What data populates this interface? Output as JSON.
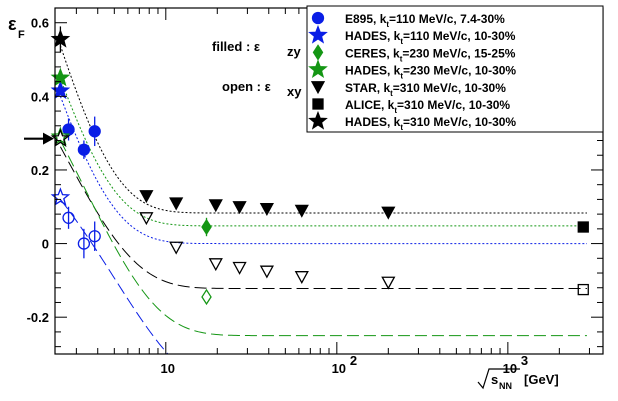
{
  "chart_data": {
    "type": "scatter",
    "x_axis": {
      "scale": "log",
      "range": [
        2.25,
        3600
      ],
      "ticks": [
        10,
        100,
        1000
      ],
      "tick_labels": [
        "10",
        "10",
        "10"
      ],
      "tick_exponents": [
        "",
        "2",
        "3"
      ],
      "label_sqrt": "s",
      "label_subscript": "NN",
      "label_units": "[GeV]"
    },
    "y_axis": {
      "range": [
        -0.3,
        0.64
      ],
      "ticks": [
        -0.2,
        0,
        0.2,
        0.4,
        0.6
      ],
      "tick_labels": [
        "-0.2",
        "0",
        "0.2",
        "0.4",
        "0.6"
      ],
      "label_main": "ε",
      "label_subscript": "F"
    },
    "grid": false,
    "legend_position": "top-right",
    "annotations": {
      "filled": {
        "text": "filled : ε",
        "subscript": "zy"
      },
      "open": {
        "text": "open : ε",
        "subscript": "xy"
      },
      "arrow_y": 0.285
    },
    "legend": [
      {
        "marker": "circle",
        "color": "#0a1ee6",
        "text": "E895,       k",
        "sub": "t",
        "rest": "=110 MeV/c, 7.4-30%"
      },
      {
        "marker": "star",
        "color": "#0a1ee6",
        "text": "HADES, k",
        "sub": "t",
        "rest": "=110 MeV/c, 10-30%"
      },
      {
        "marker": "diamond",
        "color": "#149614",
        "text": "CERES, k",
        "sub": "t",
        "rest": "=230 MeV/c, 15-25%"
      },
      {
        "marker": "star",
        "color": "#149614",
        "text": "HADES, k",
        "sub": "t",
        "rest": "=230 MeV/c, 10-30%"
      },
      {
        "marker": "triangle-down",
        "color": "#000000",
        "text": "STAR,     k",
        "sub": "t",
        "rest": "=310 MeV/c, 10-30%"
      },
      {
        "marker": "square",
        "color": "#000000",
        "text": "ALICE,    k",
        "sub": "t",
        "rest": "=310 MeV/c, 10-30%"
      },
      {
        "marker": "star",
        "color": "#000000",
        "text": "HADES, k",
        "sub": "t",
        "rest": "=310 MeV/c, 10-30%"
      }
    ],
    "series": [
      {
        "name": "E895, kt=110 MeV/c, 7.4-30%",
        "variant": "filled",
        "marker": "circle",
        "color": "#0a1ee6",
        "x": [
          2.7,
          3.32,
          3.84
        ],
        "y": [
          0.31,
          0.255,
          0.305
        ],
        "err": [
          0.03,
          0.025,
          0.04
        ]
      },
      {
        "name": "E895, kt=110 MeV/c, 7.4-30%",
        "variant": "open",
        "marker": "circle",
        "color": "#0a1ee6",
        "x": [
          2.7,
          3.32,
          3.84
        ],
        "y": [
          0.07,
          0.0,
          0.02
        ],
        "err": [
          0.03,
          0.04,
          0.04
        ]
      },
      {
        "name": "HADES, kt=110 MeV/c, 10-30%",
        "variant": "filled",
        "marker": "star",
        "color": "#0a1ee6",
        "x": [
          2.42
        ],
        "y": [
          0.415
        ],
        "err": [
          0
        ]
      },
      {
        "name": "HADES, kt=110 MeV/c, 10-30%",
        "variant": "open",
        "marker": "star",
        "color": "#0a1ee6",
        "x": [
          2.42
        ],
        "y": [
          0.125
        ],
        "err": [
          0
        ]
      },
      {
        "name": "CERES, kt=230 MeV/c, 15-25%",
        "variant": "filled",
        "marker": "diamond",
        "color": "#149614",
        "x": [
          17.3
        ],
        "y": [
          0.045
        ],
        "err": [
          0.025
        ]
      },
      {
        "name": "CERES, kt=230 MeV/c, 15-25%",
        "variant": "open",
        "marker": "diamond",
        "color": "#149614",
        "x": [
          17.3
        ],
        "y": [
          -0.145
        ],
        "err": [
          0
        ]
      },
      {
        "name": "HADES, kt=230 MeV/c, 10-30%",
        "variant": "filled",
        "marker": "star",
        "color": "#149614",
        "x": [
          2.42
        ],
        "y": [
          0.45
        ],
        "err": [
          0
        ]
      },
      {
        "name": "HADES, kt=230 MeV/c, 10-30%",
        "variant": "open",
        "marker": "star",
        "color": "#149614",
        "x": [
          2.42
        ],
        "y": [
          0.29
        ],
        "err": [
          0
        ]
      },
      {
        "name": "STAR, kt=310 MeV/c, 10-30%",
        "variant": "filled",
        "marker": "triangle-down",
        "color": "#000000",
        "x": [
          7.7,
          11.5,
          19.6,
          27,
          39,
          62.4,
          200
        ],
        "y": [
          0.13,
          0.11,
          0.105,
          0.1,
          0.095,
          0.09,
          0.085
        ],
        "err": [
          0,
          0,
          0,
          0,
          0,
          0,
          0
        ]
      },
      {
        "name": "STAR, kt=310 MeV/c, 10-30%",
        "variant": "open",
        "marker": "triangle-down",
        "color": "#000000",
        "x": [
          7.7,
          11.5,
          19.6,
          27,
          39,
          62.4,
          200
        ],
        "y": [
          0.07,
          -0.01,
          -0.055,
          -0.065,
          -0.075,
          -0.09,
          -0.105
        ],
        "err": [
          0,
          0,
          0,
          0,
          0,
          0,
          0
        ]
      },
      {
        "name": "ALICE, kt=310 MeV/c, 10-30%",
        "variant": "filled",
        "marker": "square",
        "color": "#000000",
        "x": [
          2760
        ],
        "y": [
          0.045
        ],
        "err": [
          0
        ]
      },
      {
        "name": "ALICE, kt=310 MeV/c, 10-30%",
        "variant": "open",
        "marker": "square",
        "color": "#000000",
        "x": [
          2760
        ],
        "y": [
          -0.125
        ],
        "err": [
          0
        ]
      },
      {
        "name": "HADES, kt=310 MeV/c, 10-30%",
        "variant": "filled",
        "marker": "star",
        "color": "#000000",
        "x": [
          2.42
        ],
        "y": [
          0.555
        ],
        "err": [
          0.035
        ]
      },
      {
        "name": "HADES, kt=310 MeV/c, 10-30%",
        "variant": "open",
        "marker": "star",
        "color": "#000000",
        "x": [
          2.42
        ],
        "y": [
          0.285
        ],
        "err": [
          0
        ]
      }
    ],
    "curves": [
      {
        "color": "#000000",
        "style": "dotted",
        "asymptote": 0.083,
        "amplitude": 0.455,
        "decay": 0.55
      },
      {
        "color": "#149614",
        "style": "dotted",
        "asymptote": 0.048,
        "amplitude": 0.4,
        "decay": 0.55
      },
      {
        "color": "#0a1ee6",
        "style": "dotted",
        "asymptote": 0.0,
        "amplitude": 0.4,
        "decay": 0.55
      },
      {
        "color": "#000000",
        "style": "dashed",
        "asymptote": -0.122,
        "amplitude": 0.385,
        "decay": 0.4
      },
      {
        "color": "#149614",
        "style": "dashed",
        "asymptote": -0.25,
        "amplitude": 0.53,
        "decay": 0.3
      },
      {
        "color": "#0a1ee6",
        "style": "dashed",
        "asymptote": -0.41,
        "amplitude": 0.53,
        "decay": 0.2
      }
    ]
  }
}
